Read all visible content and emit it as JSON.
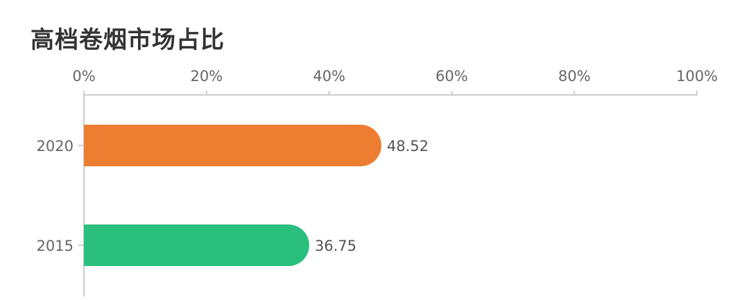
{
  "chart_data": {
    "type": "bar",
    "orientation": "horizontal",
    "title": "高档卷烟市场占比",
    "categories": [
      "2020",
      "2015"
    ],
    "values": [
      48.52,
      36.75
    ],
    "value_labels": [
      "48.52",
      "36.75"
    ],
    "colors": [
      "#ED7D31",
      "#2BBF7E"
    ],
    "xlim": [
      0,
      100
    ],
    "x_ticks": [
      0,
      20,
      40,
      60,
      80,
      100
    ],
    "x_tick_labels": [
      "0%",
      "20%",
      "40%",
      "60%",
      "80%",
      "100%"
    ],
    "x_axis_position": "top",
    "grid": false,
    "legend": "none"
  }
}
